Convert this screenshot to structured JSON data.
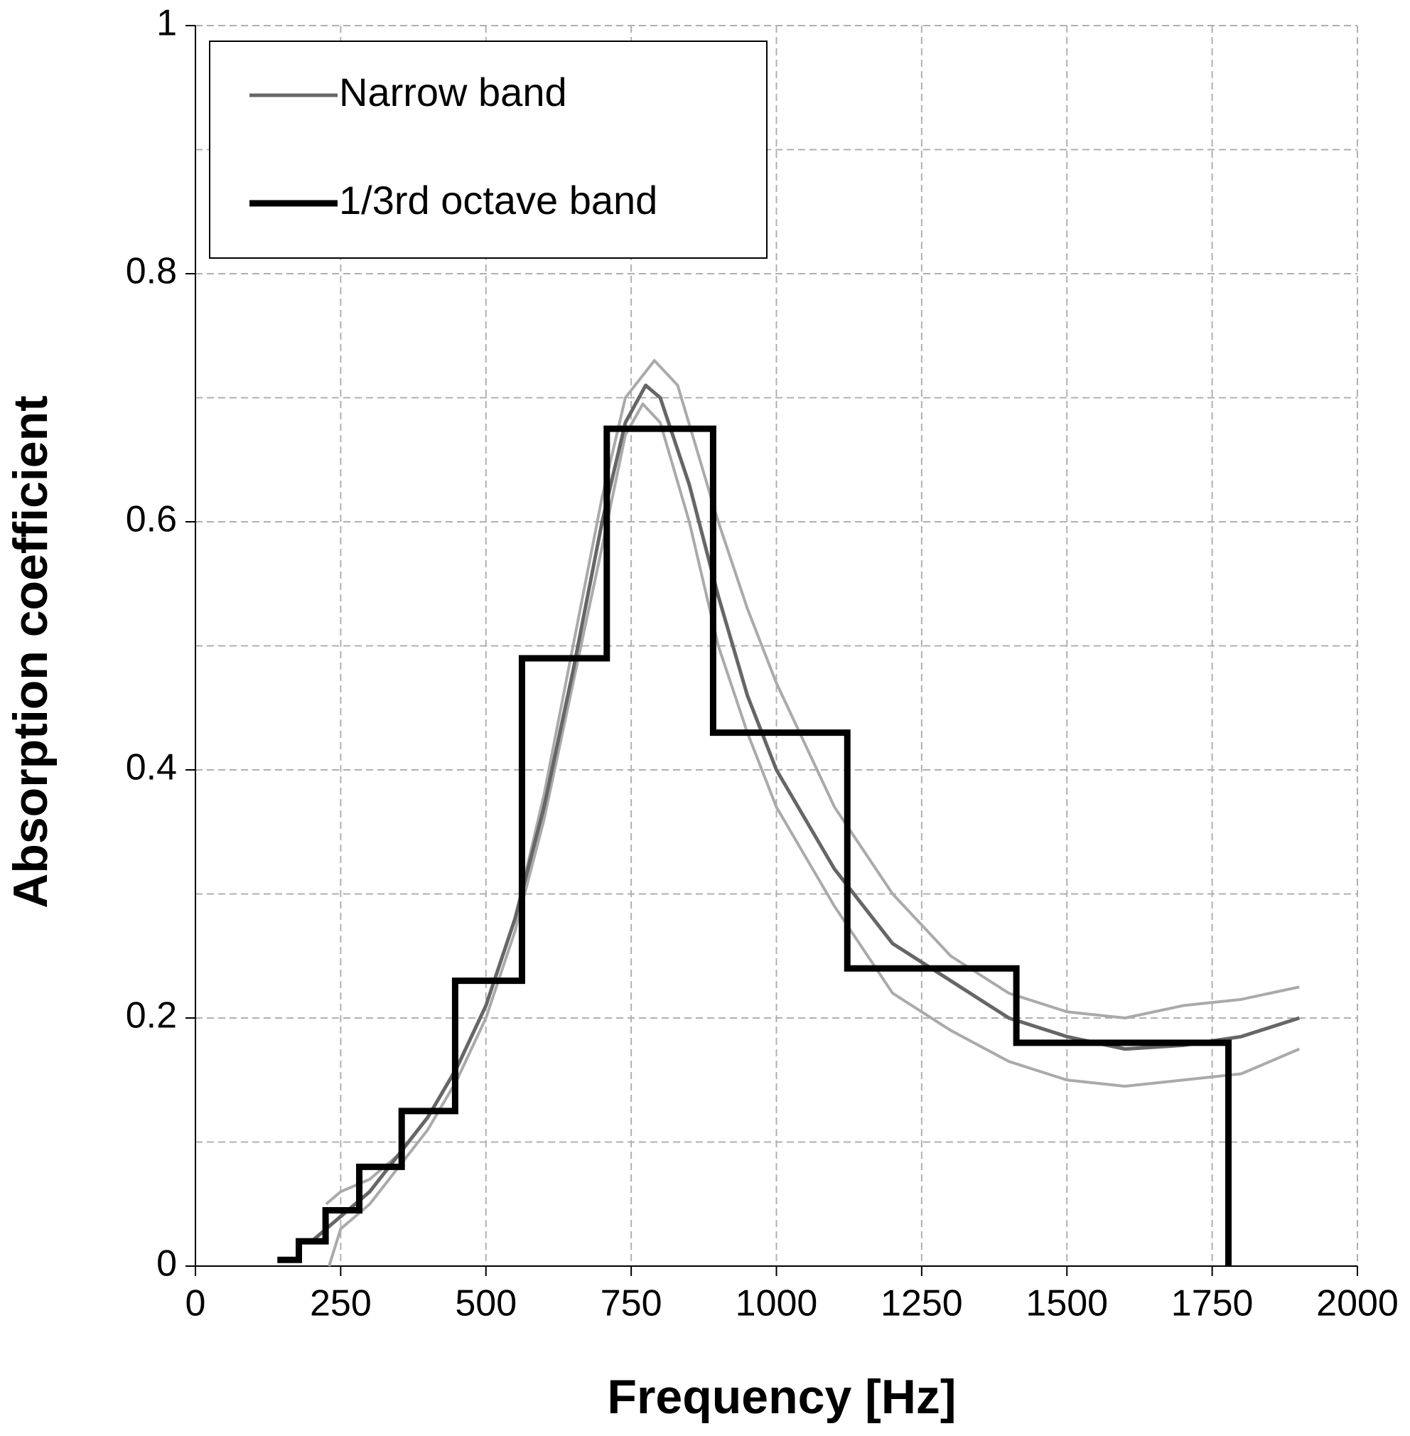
{
  "chart_data": {
    "type": "line",
    "xlabel": "Frequency  [Hz]",
    "ylabel": "Absorption coefficient",
    "xlim": [
      0,
      2000
    ],
    "xticks": [
      0,
      250,
      500,
      750,
      1000,
      1250,
      1500,
      1750,
      2000
    ],
    "ylim": [
      0,
      1
    ],
    "yticks": [
      0,
      0.2,
      0.4,
      0.6,
      0.8,
      1
    ],
    "yminorticks": [
      0.1,
      0.3,
      0.5,
      0.7,
      0.9
    ],
    "grid": true,
    "legend": "upper left",
    "series": [
      {
        "color": "#aaaaaa",
        "width": 4,
        "x": [
          225,
          250,
          300,
          350,
          400,
          450,
          500,
          550,
          600,
          650,
          700,
          740,
          790,
          830,
          900,
          950,
          1000,
          1100,
          1200,
          1300,
          1400,
          1500,
          1600,
          1700,
          1800,
          1900
        ],
        "values": [
          0.05,
          0.06,
          0.07,
          0.09,
          0.12,
          0.16,
          0.21,
          0.28,
          0.38,
          0.5,
          0.62,
          0.7,
          0.73,
          0.71,
          0.6,
          0.53,
          0.47,
          0.37,
          0.3,
          0.25,
          0.22,
          0.205,
          0.2,
          0.21,
          0.215,
          0.225
        ]
      },
      {
        "color": "#aaaaaa",
        "width": 4,
        "x": [
          230,
          250,
          300,
          350,
          400,
          450,
          500,
          550,
          600,
          650,
          700,
          740,
          770,
          800,
          850,
          900,
          950,
          1000,
          1100,
          1200,
          1300,
          1400,
          1500,
          1600,
          1700,
          1800,
          1900
        ],
        "values": [
          0.0,
          0.03,
          0.05,
          0.08,
          0.11,
          0.15,
          0.2,
          0.27,
          0.36,
          0.47,
          0.58,
          0.67,
          0.695,
          0.68,
          0.6,
          0.5,
          0.43,
          0.37,
          0.29,
          0.22,
          0.19,
          0.165,
          0.15,
          0.145,
          0.15,
          0.155,
          0.175
        ]
      },
      {
        "name": "Narrow band",
        "color": "#666666",
        "width": 5,
        "x": [
          200,
          225,
          250,
          300,
          350,
          400,
          450,
          500,
          550,
          600,
          650,
          700,
          740,
          775,
          800,
          850,
          900,
          950,
          1000,
          1100,
          1200,
          1300,
          1400,
          1500,
          1600,
          1700,
          1800,
          1900
        ],
        "values": [
          0.02,
          0.03,
          0.04,
          0.06,
          0.09,
          0.12,
          0.16,
          0.21,
          0.28,
          0.37,
          0.48,
          0.6,
          0.68,
          0.71,
          0.7,
          0.63,
          0.54,
          0.46,
          0.4,
          0.32,
          0.26,
          0.23,
          0.2,
          0.185,
          0.175,
          0.178,
          0.185,
          0.2
        ]
      },
      {
        "name": "1/3rd octave band",
        "color": "#000000",
        "width": 9,
        "step": "post",
        "x": [
          141,
          178,
          224,
          282,
          355,
          447,
          562,
          708,
          891,
          1122,
          1413,
          1778
        ],
        "values": [
          0.005,
          0.02,
          0.045,
          0.08,
          0.125,
          0.23,
          0.49,
          0.675,
          0.43,
          0.24,
          0.18,
          0
        ]
      }
    ]
  }
}
